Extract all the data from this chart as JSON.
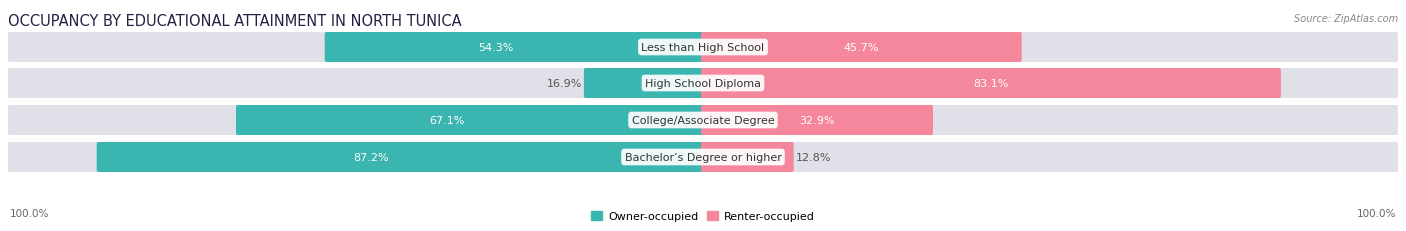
{
  "title": "OCCUPANCY BY EDUCATIONAL ATTAINMENT IN NORTH TUNICA",
  "source": "Source: ZipAtlas.com",
  "categories": [
    "Less than High School",
    "High School Diploma",
    "College/Associate Degree",
    "Bachelor’s Degree or higher"
  ],
  "owner_values": [
    54.3,
    16.9,
    67.1,
    87.2
  ],
  "renter_values": [
    45.7,
    83.1,
    32.9,
    12.8
  ],
  "owner_color": "#3ab5b0",
  "renter_color": "#f4879c",
  "background_color": "#ffffff",
  "bar_track_color": "#e0e0e8",
  "title_fontsize": 10.5,
  "label_fontsize": 8.0,
  "tick_fontsize": 7.5,
  "legend_fontsize": 8.0,
  "x_left_label": "100.0%",
  "x_right_label": "100.0%",
  "owner_legend": "Owner-occupied",
  "renter_legend": "Renter-occupied"
}
